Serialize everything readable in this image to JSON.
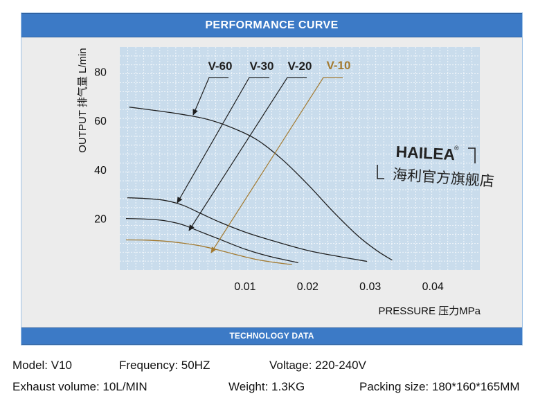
{
  "header": {
    "title": "PERFORMANCE CURVE"
  },
  "footer_band": {
    "title": "TECHNOLOGY DATA"
  },
  "watermark": {
    "brand": "HAILEA",
    "registered": "®",
    "store": "海利官方旗舰店"
  },
  "chart_data": {
    "type": "line",
    "xlabel": "PRESSURE 压力MPa",
    "ylabel": "OUTPUT 排气量 L/min",
    "xlim": [
      -0.01,
      0.0475
    ],
    "ylim": [
      -1,
      90
    ],
    "xticks": [
      "0.01",
      "0.02",
      "0.03",
      "0.04"
    ],
    "xtick_values": [
      0.01,
      0.02,
      0.03,
      0.04
    ],
    "yticks": [
      "20",
      "40",
      "60",
      "80"
    ],
    "ytick_values": [
      20,
      40,
      60,
      80
    ],
    "grid": true,
    "colors": {
      "plot_bg": "#c9dcec",
      "grid": "#ffffff",
      "curve_dark": "#1f1f1f",
      "curve_v10": "#a37a30"
    },
    "series": [
      {
        "name": "V-60",
        "color": "#1f1f1f",
        "x": [
          -0.0085,
          -0.004,
          0.0,
          0.004,
          0.008,
          0.012,
          0.016,
          0.02,
          0.024,
          0.028,
          0.031,
          0.0335
        ],
        "y": [
          65.5,
          64,
          62.5,
          60.5,
          57,
          52,
          44,
          34,
          23,
          13,
          7,
          3
        ]
      },
      {
        "name": "V-30",
        "color": "#1f1f1f",
        "x": [
          -0.0088,
          -0.006,
          -0.003,
          0.0,
          0.003,
          0.006,
          0.01,
          0.015,
          0.02,
          0.025,
          0.0295
        ],
        "y": [
          28.5,
          28.2,
          27.5,
          25.5,
          22,
          18.5,
          14.5,
          10.5,
          7,
          4.5,
          2.5
        ]
      },
      {
        "name": "V-20",
        "color": "#1f1f1f",
        "x": [
          -0.009,
          -0.006,
          -0.003,
          0.0,
          0.003,
          0.006,
          0.01,
          0.014,
          0.0185
        ],
        "y": [
          20,
          19.8,
          19.2,
          17.5,
          14.5,
          11.5,
          7.5,
          4.5,
          2
        ]
      },
      {
        "name": "V-10",
        "color": "#a37a30",
        "x": [
          -0.009,
          -0.006,
          -0.003,
          0.0,
          0.003,
          0.006,
          0.009,
          0.012,
          0.015,
          0.0175
        ],
        "y": [
          11.3,
          11.2,
          10.8,
          10,
          8.8,
          7,
          5,
          3.2,
          2,
          1.2
        ]
      }
    ],
    "legend": [
      {
        "name": "V-60",
        "color": "#1f1f1f"
      },
      {
        "name": "V-30",
        "color": "#1f1f1f"
      },
      {
        "name": "V-20",
        "color": "#1f1f1f"
      },
      {
        "name": "V-10",
        "color": "#a37a30"
      }
    ],
    "legend_placement": "top-center, with a leader arrow from each label to its curve"
  },
  "specs": {
    "model": "Model: V10",
    "frequency": "Frequency: 50HZ",
    "voltage": "Voltage: 220-240V",
    "exhaust_volume": "Exhaust volume: 10L/MIN",
    "weight": "Weight: 1.3KG",
    "packing_size": "Packing size: 180*160*165MM"
  }
}
